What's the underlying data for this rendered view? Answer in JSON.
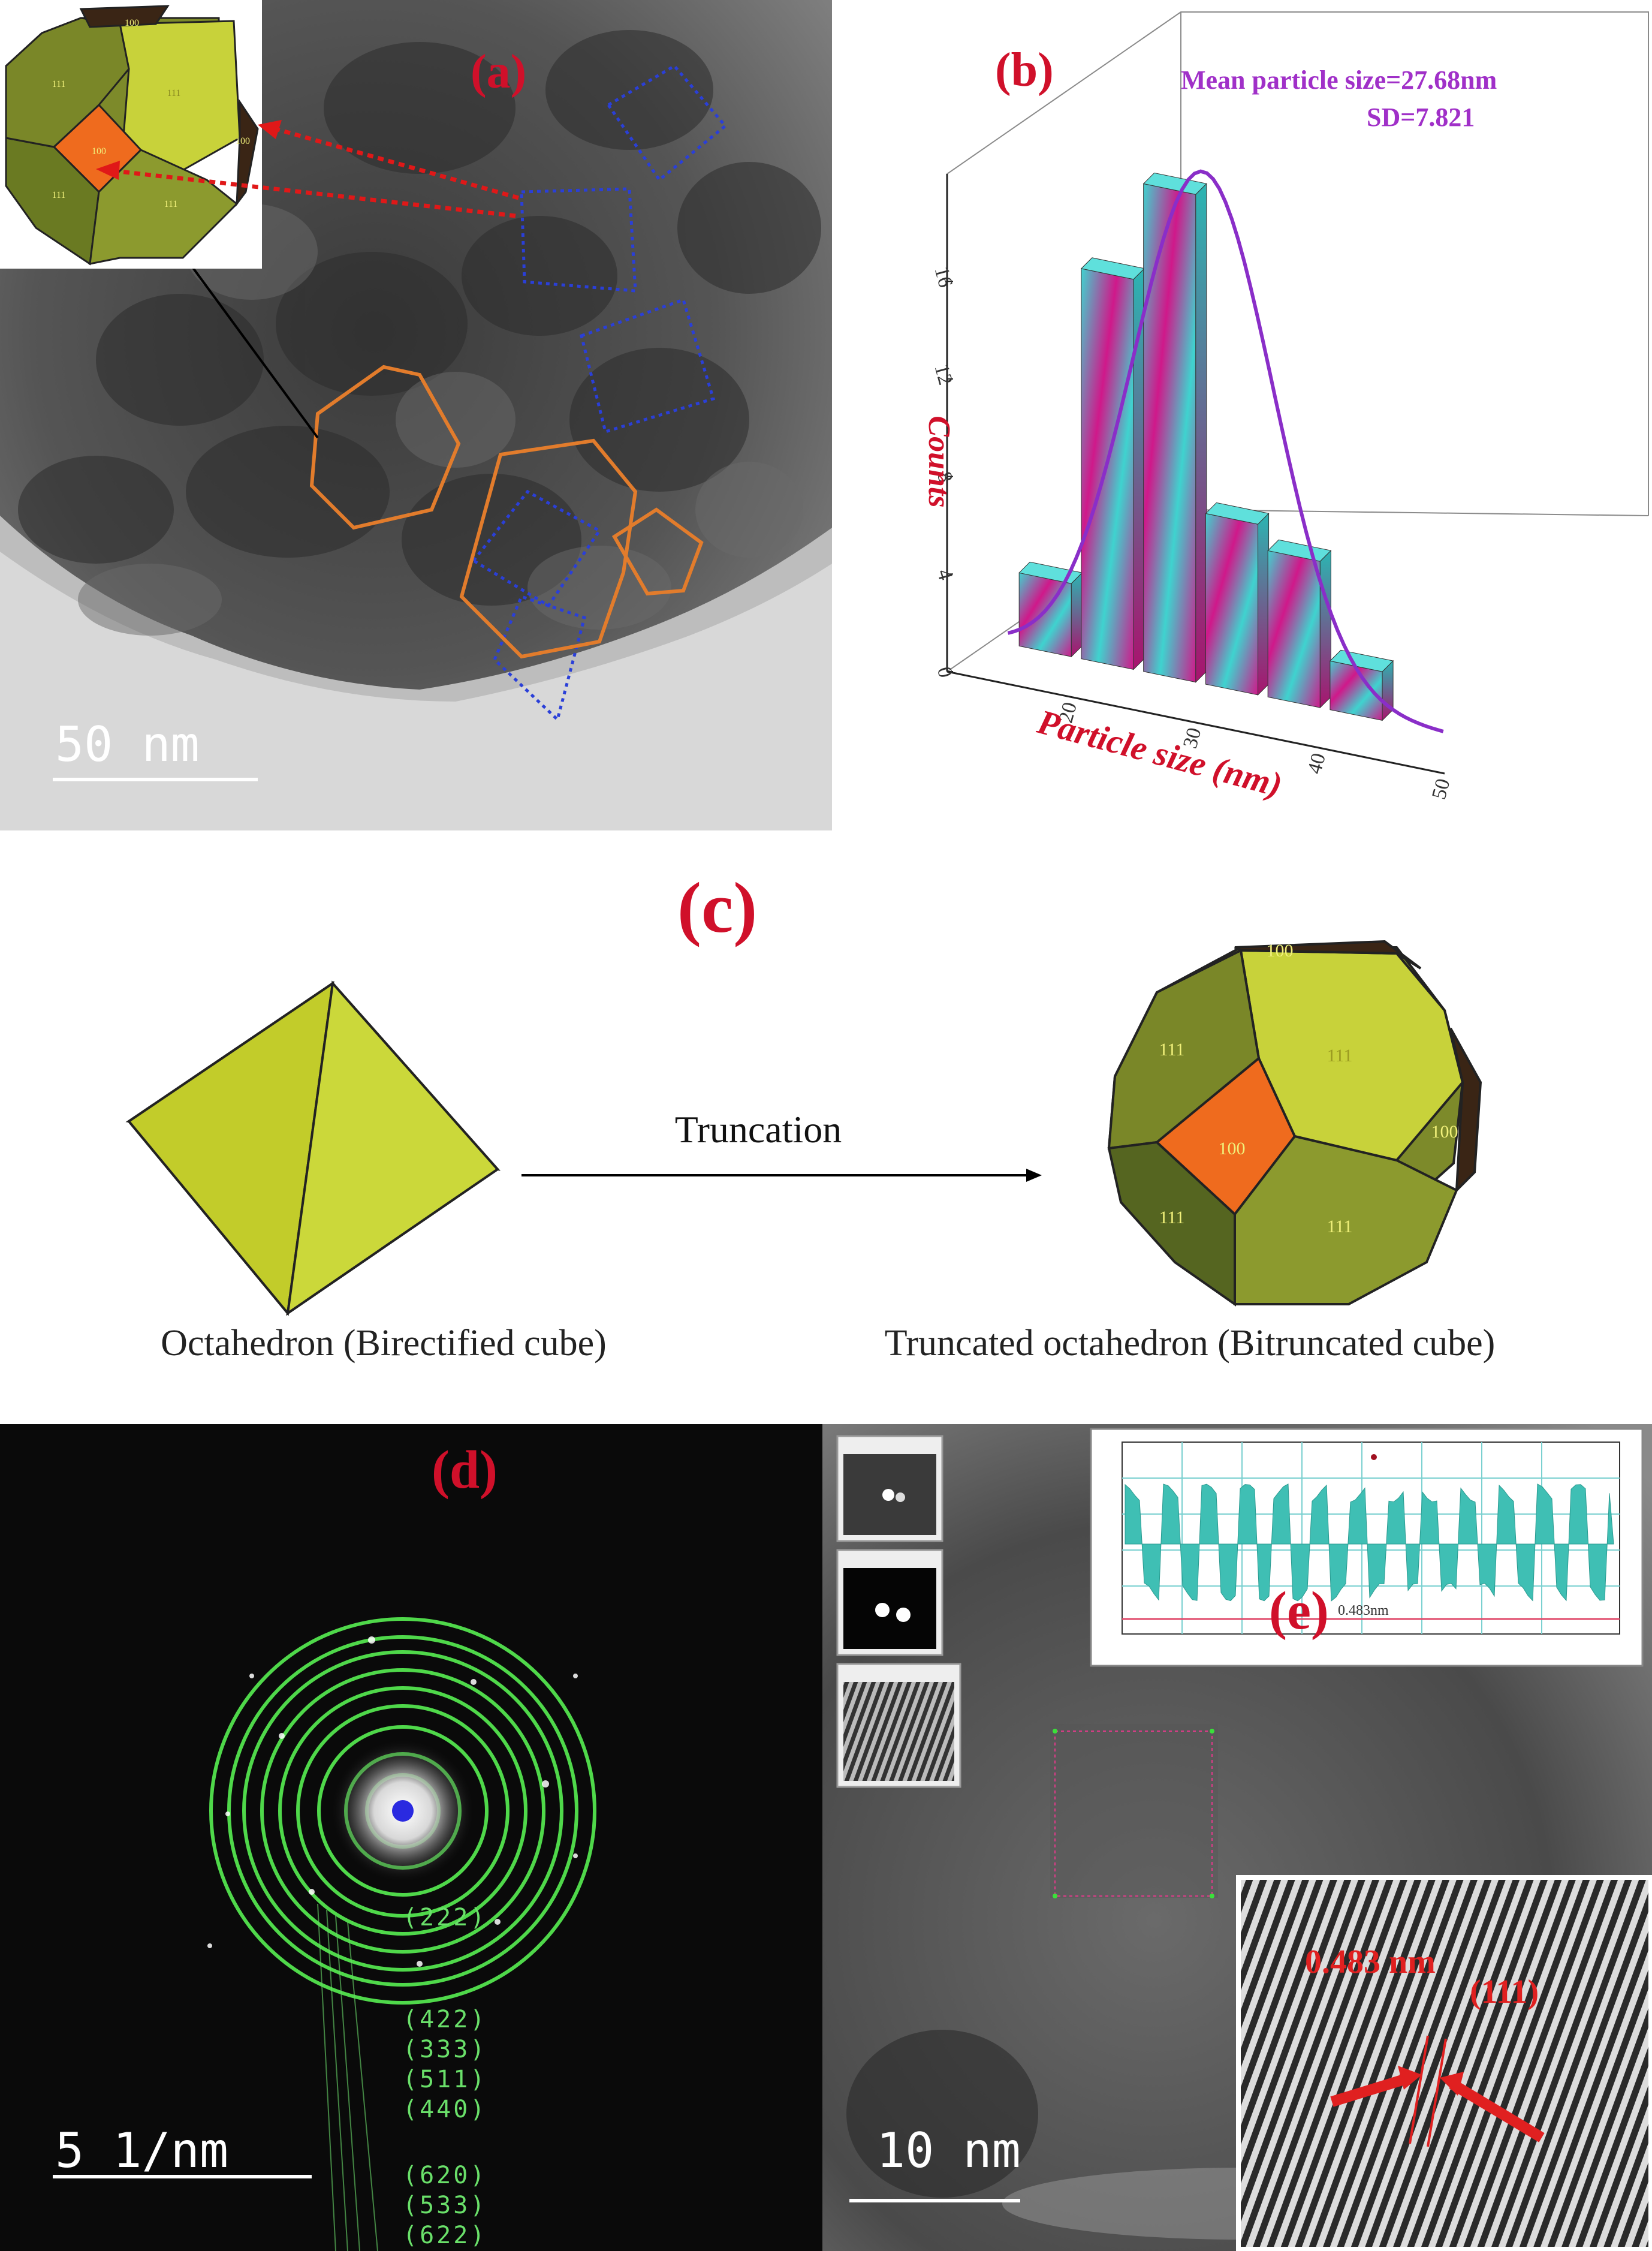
{
  "panel_a": {
    "label": "(a)",
    "scale_bar": "50 nm",
    "inset_facets": [
      "100",
      "111",
      "111",
      "100",
      "100",
      "111",
      "111"
    ]
  },
  "panel_b": {
    "label": "(b)",
    "annotation_mean": "Mean particle size=27.68nm",
    "annotation_sd": "SD=7.821",
    "colors": {
      "bar_a": "#3fd3cf",
      "bar_b": "#d0188a",
      "fit": "#8a2ec8",
      "label": "#d0102a"
    }
  },
  "chart_data": {
    "type": "bar",
    "xlabel": "Particle size (nm)",
    "ylabel": "Counts",
    "x_ticks": [
      "20",
      "30",
      "40",
      "50"
    ],
    "y_ticks": [
      "0",
      "4",
      "8",
      "12",
      "16"
    ],
    "categories": [
      "15",
      "20",
      "25",
      "30",
      "35",
      "40",
      "45"
    ],
    "values": [
      3,
      16,
      20,
      7,
      6,
      2,
      0
    ],
    "fit": "Gaussian",
    "ylim": [
      0,
      20
    ]
  },
  "panel_c": {
    "label": "(c)",
    "arrow_label": "Truncation",
    "left_caption": "Octahedron (Birectified cube)",
    "right_caption": "Truncated octahedron (Bitruncated cube)",
    "facets": {
      "top": "100",
      "upper_left": "111",
      "upper_right": "111",
      "center": "100",
      "right": "100",
      "lower_left": "111",
      "lower_right": "111"
    }
  },
  "panel_d": {
    "label": "(d)",
    "scale_bar": "5 1/nm",
    "ring_labels": [
      "(222)",
      "(422)",
      "(333)",
      "(511)",
      "(440)",
      "(620)",
      "(533)",
      "(622)"
    ]
  },
  "panel_e": {
    "label": "(e)",
    "scale_bar": "10 nm",
    "profile_label": "0.483nm",
    "spacing_label": "0.483 nm",
    "plane_label": "(111)"
  }
}
